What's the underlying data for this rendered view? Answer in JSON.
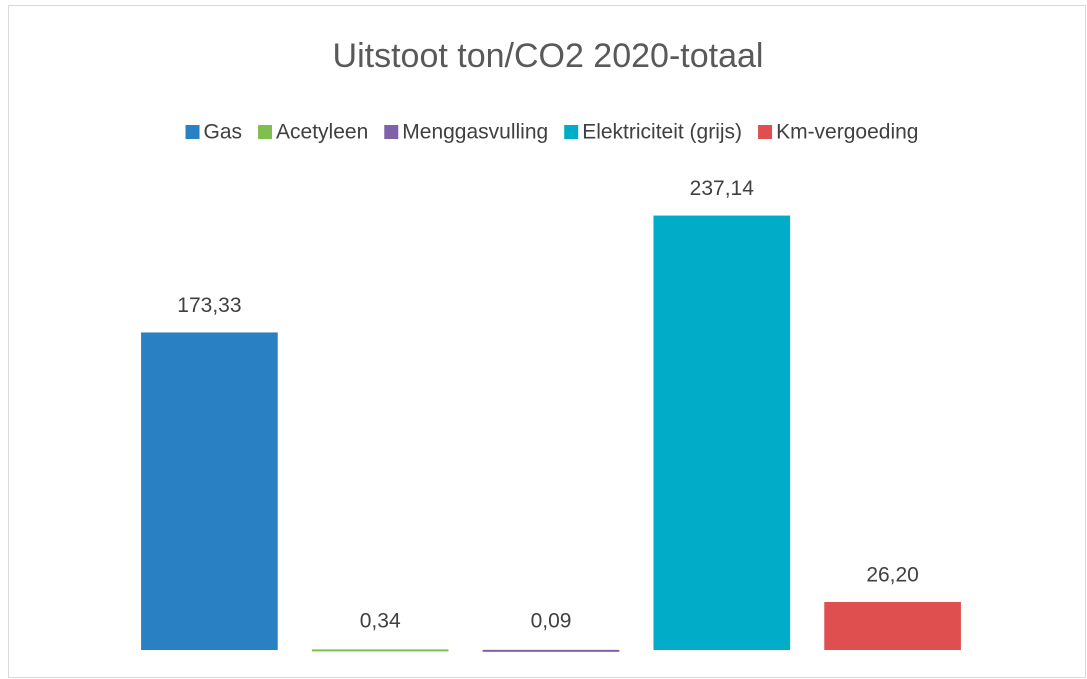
{
  "chart_data": {
    "type": "bar",
    "title": "Uitstoot ton/CO2 2020-totaal",
    "series": [
      {
        "name": "Gas",
        "color": "#2980c2",
        "values": [
          173.33
        ],
        "value_labels": [
          "173,33"
        ]
      },
      {
        "name": "Acetyleen",
        "color": "#7ebf4f",
        "values": [
          0.34
        ],
        "value_labels": [
          "0,34"
        ]
      },
      {
        "name": "Menggasvulling",
        "color": "#7f62a8",
        "values": [
          0.09
        ],
        "value_labels": [
          "0,09"
        ]
      },
      {
        "name": "Elektriciteit (grijs)",
        "color": "#00acc8",
        "values": [
          237.14
        ],
        "value_labels": [
          "237,14"
        ]
      },
      {
        "name": "Km-vergoeding",
        "color": "#df4f4f",
        "values": [
          26.2
        ],
        "value_labels": [
          "26,20"
        ]
      }
    ],
    "ylim": [
      0,
      250
    ],
    "legend": "top"
  }
}
